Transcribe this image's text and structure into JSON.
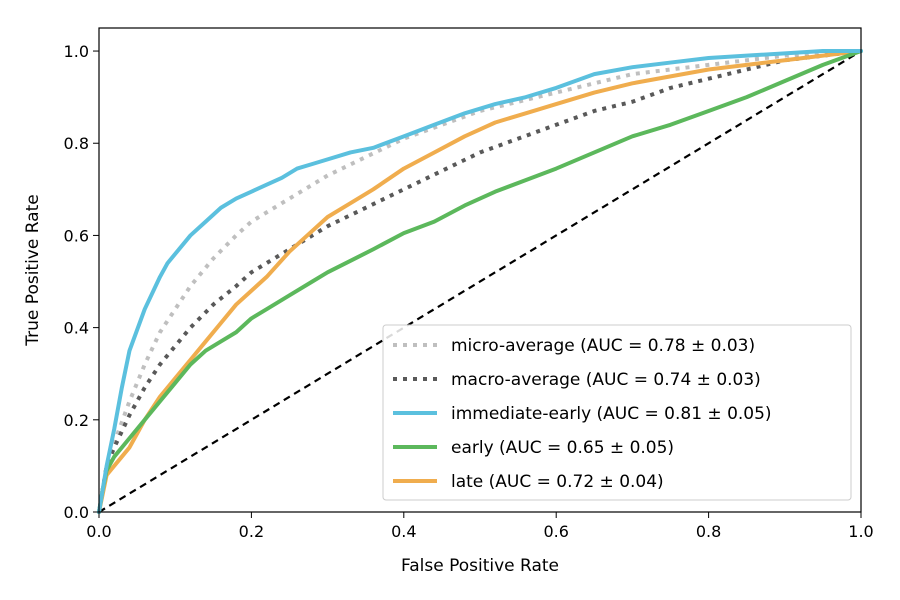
{
  "chart_data": {
    "type": "line",
    "title": "",
    "xlabel": "False Positive Rate",
    "ylabel": "True Positive Rate",
    "xlim": [
      0,
      1
    ],
    "ylim": [
      0,
      1.05
    ],
    "xticks": [
      0.0,
      0.2,
      0.4,
      0.6,
      0.8,
      1.0
    ],
    "xtick_labels": [
      "0.0",
      "0.2",
      "0.4",
      "0.6",
      "0.8",
      "1.0"
    ],
    "yticks": [
      0.0,
      0.2,
      0.4,
      0.6,
      0.8,
      1.0
    ],
    "ytick_labels": [
      "0.0",
      "0.2",
      "0.4",
      "0.6",
      "0.8",
      "1.0"
    ],
    "grid": false,
    "legend_position": "lower-right",
    "series": [
      {
        "name": "micro-average (AUC = 0.78 ± 0.03)",
        "color": "#bfbfbf",
        "style": "dotted",
        "x": [
          0,
          0.01,
          0.02,
          0.04,
          0.06,
          0.08,
          0.1,
          0.12,
          0.15,
          0.18,
          0.2,
          0.25,
          0.3,
          0.35,
          0.4,
          0.45,
          0.5,
          0.55,
          0.6,
          0.65,
          0.7,
          0.75,
          0.8,
          0.85,
          0.9,
          0.95,
          1.0
        ],
        "y": [
          0,
          0.1,
          0.15,
          0.24,
          0.32,
          0.39,
          0.44,
          0.49,
          0.55,
          0.6,
          0.63,
          0.68,
          0.73,
          0.77,
          0.81,
          0.84,
          0.87,
          0.89,
          0.91,
          0.93,
          0.95,
          0.96,
          0.97,
          0.98,
          0.99,
          0.995,
          1.0
        ]
      },
      {
        "name": "macro-average (AUC = 0.74 ± 0.03)",
        "color": "#595959",
        "style": "dotted",
        "x": [
          0,
          0.01,
          0.02,
          0.04,
          0.06,
          0.08,
          0.1,
          0.12,
          0.15,
          0.18,
          0.2,
          0.25,
          0.3,
          0.35,
          0.4,
          0.45,
          0.5,
          0.55,
          0.6,
          0.65,
          0.7,
          0.75,
          0.8,
          0.85,
          0.9,
          0.95,
          1.0
        ],
        "y": [
          0,
          0.1,
          0.14,
          0.21,
          0.27,
          0.32,
          0.36,
          0.4,
          0.45,
          0.49,
          0.52,
          0.57,
          0.62,
          0.66,
          0.7,
          0.74,
          0.78,
          0.81,
          0.84,
          0.87,
          0.89,
          0.92,
          0.94,
          0.96,
          0.98,
          0.99,
          1.0
        ]
      },
      {
        "name": "immediate-early (AUC = 0.81 ± 0.05)",
        "color": "#5bc0de",
        "style": "solid",
        "x": [
          0,
          0.005,
          0.01,
          0.02,
          0.03,
          0.04,
          0.06,
          0.08,
          0.09,
          0.1,
          0.12,
          0.14,
          0.16,
          0.18,
          0.2,
          0.22,
          0.24,
          0.26,
          0.28,
          0.3,
          0.33,
          0.36,
          0.4,
          0.44,
          0.48,
          0.52,
          0.56,
          0.6,
          0.65,
          0.7,
          0.75,
          0.8,
          0.85,
          0.9,
          0.95,
          1.0
        ],
        "y": [
          0,
          0.05,
          0.1,
          0.18,
          0.27,
          0.35,
          0.44,
          0.51,
          0.54,
          0.56,
          0.6,
          0.63,
          0.66,
          0.68,
          0.695,
          0.71,
          0.725,
          0.745,
          0.755,
          0.765,
          0.78,
          0.79,
          0.815,
          0.84,
          0.865,
          0.885,
          0.9,
          0.92,
          0.95,
          0.965,
          0.975,
          0.985,
          0.99,
          0.995,
          1.0,
          1.0
        ]
      },
      {
        "name": "early (AUC = 0.65 ± 0.05)",
        "color": "#5cb85c",
        "style": "solid",
        "x": [
          0,
          0.005,
          0.01,
          0.02,
          0.03,
          0.04,
          0.06,
          0.08,
          0.1,
          0.12,
          0.14,
          0.16,
          0.18,
          0.2,
          0.22,
          0.25,
          0.28,
          0.3,
          0.33,
          0.36,
          0.4,
          0.44,
          0.48,
          0.52,
          0.56,
          0.6,
          0.65,
          0.7,
          0.75,
          0.8,
          0.85,
          0.9,
          0.95,
          1.0
        ],
        "y": [
          0,
          0.05,
          0.09,
          0.12,
          0.14,
          0.16,
          0.2,
          0.24,
          0.28,
          0.32,
          0.35,
          0.37,
          0.39,
          0.42,
          0.44,
          0.47,
          0.5,
          0.52,
          0.545,
          0.57,
          0.605,
          0.63,
          0.665,
          0.695,
          0.72,
          0.745,
          0.78,
          0.815,
          0.84,
          0.87,
          0.9,
          0.935,
          0.97,
          1.0
        ]
      },
      {
        "name": "late (AUC = 0.72 ± 0.04)",
        "color": "#f0ad4e",
        "style": "solid",
        "x": [
          0,
          0.005,
          0.01,
          0.02,
          0.03,
          0.04,
          0.05,
          0.06,
          0.08,
          0.1,
          0.12,
          0.14,
          0.16,
          0.18,
          0.2,
          0.22,
          0.25,
          0.28,
          0.3,
          0.33,
          0.36,
          0.4,
          0.44,
          0.48,
          0.52,
          0.56,
          0.6,
          0.65,
          0.7,
          0.75,
          0.8,
          0.85,
          0.9,
          0.95,
          1.0
        ],
        "y": [
          0,
          0.04,
          0.08,
          0.1,
          0.12,
          0.14,
          0.17,
          0.2,
          0.25,
          0.29,
          0.33,
          0.37,
          0.41,
          0.45,
          0.48,
          0.51,
          0.565,
          0.61,
          0.64,
          0.67,
          0.7,
          0.745,
          0.78,
          0.815,
          0.845,
          0.865,
          0.885,
          0.91,
          0.93,
          0.945,
          0.96,
          0.97,
          0.98,
          0.99,
          1.0
        ]
      },
      {
        "name": "",
        "color": "#000000",
        "style": "dashed",
        "legend": false,
        "x": [
          0,
          1
        ],
        "y": [
          0,
          1
        ]
      }
    ]
  }
}
